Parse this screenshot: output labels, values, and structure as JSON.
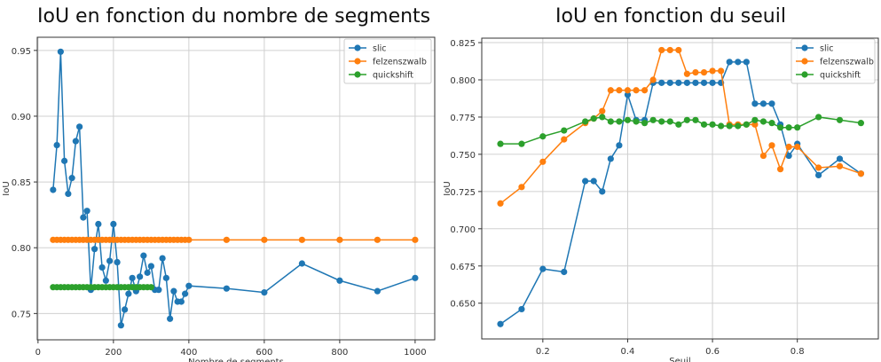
{
  "colors": {
    "slic": "#1f77b4",
    "felzenszwalb": "#ff7f0e",
    "quickshift": "#2ca02c"
  },
  "chart_data": [
    {
      "type": "line",
      "title": "IoU en fonction du nombre de segments",
      "xlabel": "Nombre de segments",
      "ylabel": "IoU",
      "xlim": [
        -2,
        1052
      ],
      "ylim": [
        0.73,
        0.96
      ],
      "xticks": [
        0,
        200,
        400,
        600,
        800,
        1000
      ],
      "xtick_labels": [
        "0",
        "200",
        "400",
        "600",
        "800",
        "1000"
      ],
      "yticks": [
        0.75,
        0.8,
        0.85,
        0.9,
        0.95
      ],
      "ytick_labels": [
        "0.75",
        "0.80",
        "0.85",
        "0.90",
        "0.95"
      ],
      "grid": true,
      "legend_position": "top-right",
      "series": [
        {
          "name": "slic",
          "x": [
            40,
            50,
            60,
            70,
            80,
            90,
            100,
            110,
            120,
            130,
            140,
            150,
            160,
            170,
            180,
            190,
            200,
            210,
            220,
            230,
            240,
            250,
            260,
            270,
            280,
            290,
            300,
            310,
            320,
            330,
            340,
            350,
            360,
            370,
            380,
            390,
            400,
            500,
            600,
            700,
            800,
            900,
            1000
          ],
          "y": [
            0.844,
            0.878,
            0.949,
            0.866,
            0.841,
            0.853,
            0.881,
            0.892,
            0.823,
            0.828,
            0.768,
            0.799,
            0.818,
            0.785,
            0.775,
            0.79,
            0.818,
            0.789,
            0.741,
            0.753,
            0.765,
            0.777,
            0.767,
            0.778,
            0.794,
            0.781,
            0.786,
            0.768,
            0.768,
            0.792,
            0.777,
            0.746,
            0.767,
            0.759,
            0.759,
            0.765,
            0.771,
            0.769,
            0.766,
            0.788,
            0.775,
            0.767,
            0.777
          ]
        },
        {
          "name": "felzenszwalb",
          "x": [
            40,
            50,
            60,
            70,
            80,
            90,
            100,
            110,
            120,
            130,
            140,
            150,
            160,
            170,
            180,
            190,
            200,
            210,
            220,
            230,
            240,
            250,
            260,
            270,
            280,
            290,
            300,
            310,
            320,
            330,
            340,
            350,
            360,
            370,
            380,
            390,
            400,
            500,
            600,
            700,
            800,
            900,
            1000
          ],
          "y": [
            0.806,
            0.806,
            0.806,
            0.806,
            0.806,
            0.806,
            0.806,
            0.806,
            0.806,
            0.806,
            0.806,
            0.806,
            0.806,
            0.806,
            0.806,
            0.806,
            0.806,
            0.806,
            0.806,
            0.806,
            0.806,
            0.806,
            0.806,
            0.806,
            0.806,
            0.806,
            0.806,
            0.806,
            0.806,
            0.806,
            0.806,
            0.806,
            0.806,
            0.806,
            0.806,
            0.806,
            0.806,
            0.806,
            0.806,
            0.806,
            0.806,
            0.806,
            0.806
          ]
        },
        {
          "name": "quickshift",
          "x": [
            40,
            50,
            60,
            70,
            80,
            90,
            100,
            110,
            120,
            130,
            140,
            150,
            160,
            170,
            180,
            190,
            200,
            210,
            220,
            230,
            240,
            250,
            260,
            270,
            280,
            290,
            300
          ],
          "y": [
            0.77,
            0.77,
            0.77,
            0.77,
            0.77,
            0.77,
            0.77,
            0.77,
            0.77,
            0.77,
            0.77,
            0.77,
            0.77,
            0.77,
            0.77,
            0.77,
            0.77,
            0.77,
            0.77,
            0.77,
            0.77,
            0.77,
            0.77,
            0.77,
            0.77,
            0.77,
            0.77
          ]
        }
      ]
    },
    {
      "type": "line",
      "title": "IoU en fonction du seuil",
      "xlabel": "Seuil",
      "ylabel": "IoU",
      "xlim": [
        0.056,
        0.991
      ],
      "ylim": [
        0.626,
        0.828
      ],
      "xticks": [
        0.2,
        0.4,
        0.6,
        0.8
      ],
      "xtick_labels": [
        "0.2",
        "0.4",
        "0.6",
        "0.8"
      ],
      "yticks": [
        0.65,
        0.675,
        0.7,
        0.725,
        0.75,
        0.775,
        0.8,
        0.825
      ],
      "ytick_labels": [
        "0.650",
        "0.675",
        "0.700",
        "0.725",
        "0.750",
        "0.775",
        "0.800",
        "0.825"
      ],
      "grid": true,
      "legend_position": "top-right",
      "series": [
        {
          "name": "slic",
          "x": [
            0.1,
            0.15,
            0.2,
            0.25,
            0.3,
            0.32,
            0.34,
            0.36,
            0.38,
            0.4,
            0.42,
            0.44,
            0.46,
            0.48,
            0.5,
            0.52,
            0.54,
            0.56,
            0.58,
            0.6,
            0.62,
            0.64,
            0.66,
            0.68,
            0.7,
            0.72,
            0.74,
            0.76,
            0.78,
            0.8,
            0.85,
            0.9,
            0.95
          ],
          "y": [
            0.636,
            0.646,
            0.673,
            0.671,
            0.732,
            0.732,
            0.725,
            0.747,
            0.756,
            0.79,
            0.773,
            0.773,
            0.798,
            0.798,
            0.798,
            0.798,
            0.798,
            0.798,
            0.798,
            0.798,
            0.798,
            0.812,
            0.812,
            0.812,
            0.784,
            0.784,
            0.784,
            0.77,
            0.749,
            0.757,
            0.736,
            0.747,
            0.737
          ]
        },
        {
          "name": "felzenszwalb",
          "x": [
            0.1,
            0.15,
            0.2,
            0.25,
            0.3,
            0.32,
            0.34,
            0.36,
            0.38,
            0.4,
            0.42,
            0.44,
            0.46,
            0.48,
            0.5,
            0.52,
            0.54,
            0.56,
            0.58,
            0.6,
            0.62,
            0.64,
            0.66,
            0.68,
            0.7,
            0.72,
            0.74,
            0.76,
            0.78,
            0.8,
            0.85,
            0.9,
            0.95
          ],
          "y": [
            0.717,
            0.728,
            0.745,
            0.76,
            0.771,
            0.774,
            0.779,
            0.793,
            0.793,
            0.793,
            0.793,
            0.793,
            0.8,
            0.82,
            0.82,
            0.82,
            0.804,
            0.805,
            0.805,
            0.806,
            0.806,
            0.77,
            0.77,
            0.77,
            0.77,
            0.749,
            0.756,
            0.74,
            0.755,
            0.755,
            0.741,
            0.742,
            0.737
          ]
        },
        {
          "name": "quickshift",
          "x": [
            0.1,
            0.15,
            0.2,
            0.25,
            0.3,
            0.32,
            0.34,
            0.36,
            0.38,
            0.4,
            0.42,
            0.44,
            0.46,
            0.48,
            0.5,
            0.52,
            0.54,
            0.56,
            0.58,
            0.6,
            0.62,
            0.64,
            0.66,
            0.68,
            0.7,
            0.72,
            0.74,
            0.76,
            0.78,
            0.8,
            0.85,
            0.9,
            0.95
          ],
          "y": [
            0.757,
            0.757,
            0.762,
            0.766,
            0.772,
            0.774,
            0.775,
            0.772,
            0.772,
            0.773,
            0.772,
            0.771,
            0.773,
            0.772,
            0.772,
            0.77,
            0.773,
            0.773,
            0.77,
            0.77,
            0.769,
            0.769,
            0.769,
            0.77,
            0.773,
            0.772,
            0.771,
            0.768,
            0.768,
            0.768,
            0.775,
            0.773,
            0.771
          ]
        }
      ]
    }
  ]
}
